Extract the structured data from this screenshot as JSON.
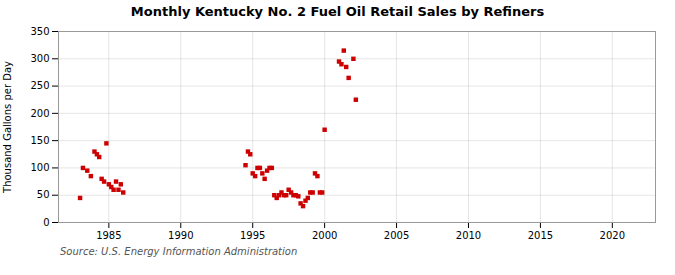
{
  "chart_data": {
    "type": "scatter",
    "title": "Monthly Kentucky No. 2 Fuel Oil Retail Sales by Refiners",
    "ylabel": "Thousand Gallons per Day",
    "caption": "Source: U.S. Energy Information Administration",
    "color": "#cc0000",
    "marker": "square",
    "grid": true,
    "xlim": [
      1981.5,
      2023
    ],
    "ylim": [
      0,
      350
    ],
    "xticks": [
      1985,
      1990,
      1995,
      2000,
      2005,
      2010,
      2015,
      2020
    ],
    "yticks": [
      0,
      50,
      100,
      150,
      200,
      250,
      300,
      350
    ],
    "x": [
      1983.0,
      1983.2,
      1983.5,
      1983.75,
      1984.0,
      1984.17,
      1984.33,
      1984.5,
      1984.67,
      1984.83,
      1985.0,
      1985.17,
      1985.33,
      1985.5,
      1985.67,
      1985.83,
      1986.0,
      1994.5,
      1994.67,
      1994.83,
      1995.0,
      1995.17,
      1995.33,
      1995.5,
      1995.67,
      1995.83,
      1996.0,
      1996.17,
      1996.33,
      1996.5,
      1996.67,
      1996.83,
      1997.0,
      1997.17,
      1997.33,
      1997.5,
      1997.67,
      1997.83,
      1998.0,
      1998.17,
      1998.33,
      1998.5,
      1998.67,
      1998.83,
      1999.0,
      1999.17,
      1999.33,
      1999.5,
      1999.67,
      1999.83,
      2000.0,
      2001.0,
      2001.17,
      2001.33,
      2001.5,
      2001.67,
      2002.0,
      2002.17
    ],
    "values": [
      45,
      100,
      95,
      85,
      130,
      125,
      120,
      80,
      75,
      145,
      70,
      65,
      60,
      75,
      60,
      70,
      55,
      105,
      130,
      125,
      90,
      85,
      100,
      100,
      90,
      80,
      95,
      100,
      100,
      50,
      45,
      50,
      55,
      50,
      50,
      60,
      55,
      50,
      50,
      48,
      35,
      30,
      40,
      45,
      55,
      55,
      90,
      85,
      55,
      55,
      170,
      295,
      290,
      315,
      285,
      265,
      300,
      225
    ]
  }
}
